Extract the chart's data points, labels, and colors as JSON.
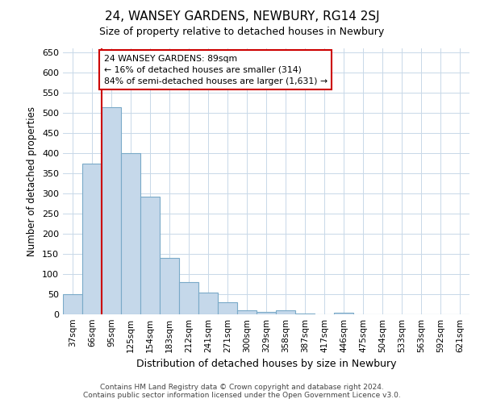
{
  "title": "24, WANSEY GARDENS, NEWBURY, RG14 2SJ",
  "subtitle": "Size of property relative to detached houses in Newbury",
  "xlabel": "Distribution of detached houses by size in Newbury",
  "ylabel": "Number of detached properties",
  "categories": [
    "37sqm",
    "66sqm",
    "95sqm",
    "125sqm",
    "154sqm",
    "183sqm",
    "212sqm",
    "241sqm",
    "271sqm",
    "300sqm",
    "329sqm",
    "358sqm",
    "387sqm",
    "417sqm",
    "446sqm",
    "475sqm",
    "504sqm",
    "533sqm",
    "563sqm",
    "592sqm",
    "621sqm"
  ],
  "values": [
    50,
    375,
    515,
    400,
    293,
    140,
    80,
    55,
    30,
    11,
    7,
    11,
    3,
    0,
    4,
    0,
    0,
    0,
    0,
    0,
    0
  ],
  "bar_color": "#c5d8ea",
  "bar_edge_color": "#7aaac8",
  "highlight_line_color": "#cc0000",
  "annotation_line1": "24 WANSEY GARDENS: 89sqm",
  "annotation_line2": "← 16% of detached houses are smaller (314)",
  "annotation_line3": "84% of semi-detached houses are larger (1,631) →",
  "annotation_box_color": "#cc0000",
  "ylim": [
    0,
    660
  ],
  "yticks": [
    0,
    50,
    100,
    150,
    200,
    250,
    300,
    350,
    400,
    450,
    500,
    550,
    600,
    650
  ],
  "footer_line1": "Contains HM Land Registry data © Crown copyright and database right 2024.",
  "footer_line2": "Contains public sector information licensed under the Open Government Licence v3.0.",
  "bg_color": "#ffffff",
  "grid_color": "#c8d8e8"
}
